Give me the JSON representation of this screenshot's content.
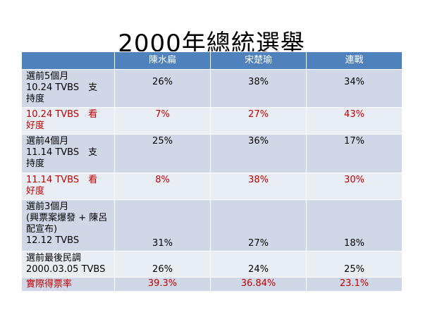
{
  "title": "2000年總統選舉",
  "columns": [
    "",
    "陳水扁",
    "宋楚瑜",
    "連戰"
  ],
  "rows": [
    {
      "label_lines": [
        "選前5個月",
        "10.24 TVBS　支",
        "持度"
      ],
      "values": [
        "26%",
        "38%",
        "34%"
      ]
    },
    {
      "label_lines": [
        "10.24 TVBS　看",
        "好度"
      ],
      "values": [
        "7%",
        "27%",
        "43%"
      ]
    },
    {
      "label_lines": [
        "選前4個月",
        "11.14 TVBS　支",
        "持度"
      ],
      "values": [
        "25%",
        "36%",
        "17%"
      ]
    },
    {
      "label_lines": [
        "11.14 TVBS　看",
        "好度"
      ],
      "values": [
        "8%",
        "38%",
        "30%"
      ]
    },
    {
      "label_lines": [
        "選前3個月",
        "(興票案爆發 + 陳呂",
        "配宣布)",
        "12.12 TVBS"
      ],
      "values": [
        "31%",
        "27%",
        "18%"
      ]
    },
    {
      "label_lines": [
        "選前最後民調",
        "2000.03.05 TVBS"
      ],
      "values": [
        "26%",
        "24%",
        "25%"
      ]
    },
    {
      "label_lines": [
        "實際得票率"
      ],
      "values": [
        "39.3%",
        "36.84%",
        "23.1%"
      ]
    }
  ],
  "colors": {
    "header": "#4f81bd",
    "row_dark": "#d0d8e8",
    "row_light": "#e9edf4",
    "highlight_text": "#c00000"
  }
}
